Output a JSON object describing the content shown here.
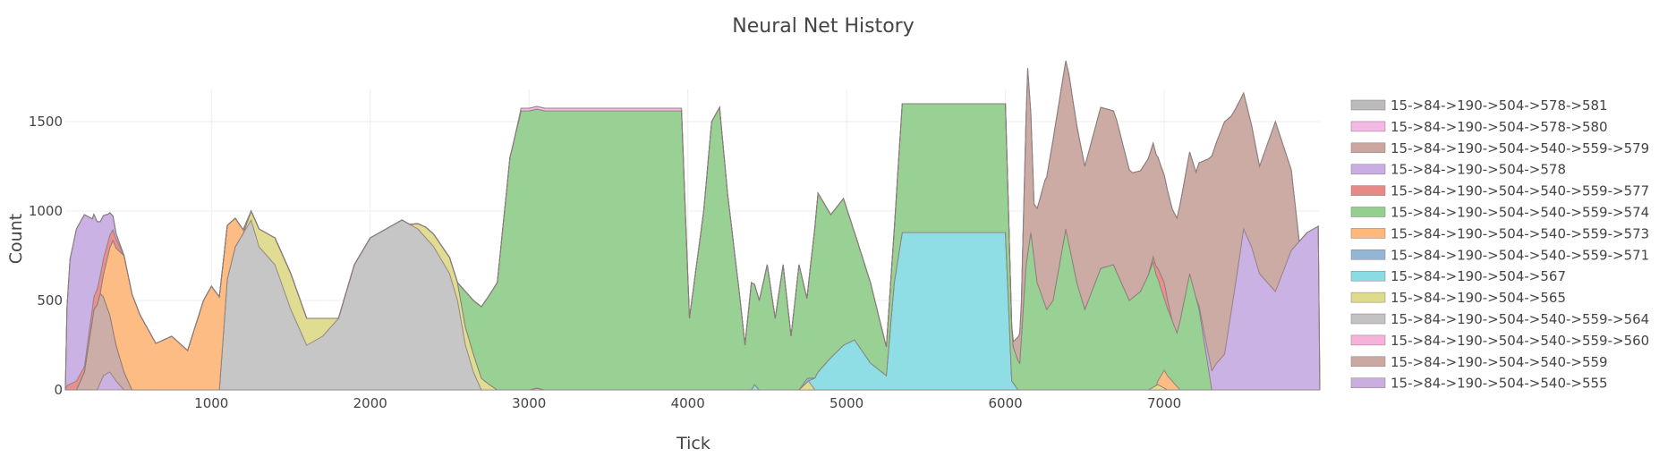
{
  "chart_data": {
    "type": "area",
    "title": "Neural Net History",
    "xlabel": "Tick",
    "ylabel": "Count",
    "xlim": [
      80,
      7980
    ],
    "ylim": [
      0,
      1680
    ],
    "x_ticks": [
      1000,
      2000,
      3000,
      4000,
      5000,
      6000,
      7000
    ],
    "x_tick_labels": [
      "1000",
      "2000",
      "3000",
      "4000",
      "5000",
      "6000",
      "7000"
    ],
    "y_ticks": [
      0,
      500,
      1000,
      1500
    ],
    "y_tick_labels": [
      "0",
      "500",
      "1000",
      "1500"
    ],
    "grid": true,
    "stacked": true,
    "legend_position": "right",
    "series": [
      {
        "name": "15->84->190->504->578->581",
        "color": "#bbbbbb",
        "points": [
          [
            3960,
            0
          ],
          [
            3990,
            18
          ],
          [
            4020,
            0
          ]
        ]
      },
      {
        "name": "15->84->190->504->578->580",
        "color": "#f4b8e4",
        "points": [
          [
            2900,
            0
          ],
          [
            2950,
            15
          ],
          [
            3960,
            15
          ],
          [
            4010,
            0
          ]
        ]
      },
      {
        "name": "15->84->190->504->540->559->579",
        "color": "#c9a7a0",
        "points": [
          [
            6040,
            0
          ],
          [
            6100,
            200
          ],
          [
            6140,
            1040
          ],
          [
            6180,
            300
          ],
          [
            6250,
            700
          ],
          [
            6300,
            900
          ],
          [
            6400,
            950
          ],
          [
            6500,
            800
          ],
          [
            6600,
            900
          ],
          [
            6700,
            850
          ],
          [
            6800,
            700
          ],
          [
            6900,
            650
          ],
          [
            7000,
            600
          ],
          [
            7100,
            650
          ],
          [
            7200,
            700
          ],
          [
            7300,
            1200
          ],
          [
            7380,
            1300
          ],
          [
            7420,
            1100
          ],
          [
            7500,
            760
          ],
          [
            7600,
            600
          ],
          [
            7700,
            950
          ],
          [
            7800,
            450
          ],
          [
            7850,
            0
          ]
        ]
      },
      {
        "name": "15->84->190->504->578",
        "color": "#c8aee3",
        "points": [
          [
            80,
            300
          ],
          [
            110,
            700
          ],
          [
            150,
            850
          ],
          [
            200,
            850
          ],
          [
            250,
            500
          ],
          [
            300,
            300
          ],
          [
            350,
            150
          ],
          [
            400,
            30
          ],
          [
            450,
            0
          ],
          [
            7200,
            0
          ],
          [
            7280,
            80
          ],
          [
            7330,
            150
          ],
          [
            7380,
            200
          ],
          [
            7450,
            600
          ],
          [
            7500,
            900
          ],
          [
            7550,
            800
          ],
          [
            7600,
            650
          ],
          [
            7700,
            550
          ],
          [
            7800,
            780
          ],
          [
            7900,
            880
          ],
          [
            7980,
            920
          ]
        ]
      },
      {
        "name": "15->84->190->504->540->559->577",
        "color": "#e68a88",
        "points": [
          [
            80,
            20
          ],
          [
            150,
            50
          ],
          [
            200,
            30
          ],
          [
            300,
            100
          ],
          [
            400,
            50
          ],
          [
            450,
            0
          ],
          [
            6900,
            0
          ],
          [
            6960,
            60
          ],
          [
            7000,
            90
          ],
          [
            7050,
            0
          ]
        ]
      },
      {
        "name": "15->84->190->504->540->559->574",
        "color": "#93cf8f",
        "points": [
          [
            2550,
            0
          ],
          [
            2600,
            200
          ],
          [
            2700,
            400
          ],
          [
            2800,
            600
          ],
          [
            2880,
            1300
          ],
          [
            2950,
            1560
          ],
          [
            3960,
            1560
          ],
          [
            4010,
            400
          ],
          [
            4100,
            1000
          ],
          [
            4150,
            1500
          ],
          [
            4200,
            1580
          ],
          [
            4250,
            1100
          ],
          [
            4330,
            500
          ],
          [
            4360,
            250
          ],
          [
            4400,
            600
          ],
          [
            4450,
            500
          ],
          [
            4500,
            700
          ],
          [
            4550,
            400
          ],
          [
            4600,
            700
          ],
          [
            4650,
            300
          ],
          [
            4700,
            700
          ],
          [
            4750,
            450
          ],
          [
            4820,
            1000
          ],
          [
            4900,
            800
          ],
          [
            4980,
            820
          ],
          [
            5050,
            600
          ],
          [
            5150,
            450
          ],
          [
            5250,
            160
          ],
          [
            5300,
            300
          ],
          [
            5350,
            720
          ],
          [
            6000,
            720
          ],
          [
            6050,
            200
          ],
          [
            6090,
            150
          ],
          [
            6130,
            700
          ],
          [
            6160,
            880
          ],
          [
            6200,
            600
          ],
          [
            6260,
            450
          ],
          [
            6300,
            500
          ],
          [
            6380,
            900
          ],
          [
            6450,
            600
          ],
          [
            6500,
            450
          ],
          [
            6600,
            680
          ],
          [
            6680,
            700
          ],
          [
            6780,
            500
          ],
          [
            6850,
            550
          ],
          [
            6930,
            700
          ],
          [
            7000,
            400
          ],
          [
            7080,
            300
          ],
          [
            7160,
            650
          ],
          [
            7220,
            450
          ],
          [
            7300,
            0
          ]
        ]
      },
      {
        "name": "15->84->190->504->540->559->573",
        "color": "#fdb87c",
        "points": [
          [
            300,
            0
          ],
          [
            380,
            500
          ],
          [
            450,
            650
          ],
          [
            550,
            420
          ],
          [
            650,
            260
          ],
          [
            750,
            300
          ],
          [
            850,
            220
          ],
          [
            950,
            500
          ],
          [
            1000,
            580
          ],
          [
            1050,
            520
          ],
          [
            1100,
            300
          ],
          [
            1200,
            20
          ],
          [
            1250,
            0
          ],
          [
            6950,
            0
          ],
          [
            7000,
            100
          ],
          [
            7050,
            50
          ],
          [
            7100,
            0
          ]
        ]
      },
      {
        "name": "15->84->190->504->540->559->571",
        "color": "#93b6d6",
        "points": [
          [
            4700,
            0
          ],
          [
            4750,
            20
          ],
          [
            4800,
            0
          ]
        ]
      },
      {
        "name": "15->84->190->504->567",
        "color": "#8adce4",
        "points": [
          [
            4400,
            0
          ],
          [
            4420,
            30
          ],
          [
            4450,
            0
          ],
          [
            4760,
            0
          ],
          [
            4820,
            100
          ],
          [
            4900,
            180
          ],
          [
            4980,
            250
          ],
          [
            5050,
            280
          ],
          [
            5150,
            150
          ],
          [
            5250,
            80
          ],
          [
            5300,
            600
          ],
          [
            5350,
            880
          ],
          [
            6000,
            880
          ],
          [
            6040,
            50
          ],
          [
            6080,
            0
          ]
        ]
      },
      {
        "name": "15->84->190->504->565",
        "color": "#dedb8d",
        "points": [
          [
            1200,
            0
          ],
          [
            1300,
            100
          ],
          [
            1400,
            150
          ],
          [
            1500,
            200
          ],
          [
            1600,
            150
          ],
          [
            1700,
            100
          ],
          [
            1800,
            0
          ],
          [
            2250,
            0
          ],
          [
            2350,
            60
          ],
          [
            2450,
            80
          ],
          [
            2550,
            100
          ],
          [
            2650,
            100
          ],
          [
            2750,
            30
          ],
          [
            2800,
            0
          ],
          [
            4700,
            0
          ],
          [
            4760,
            50
          ],
          [
            4800,
            0
          ],
          [
            6900,
            0
          ],
          [
            6960,
            30
          ],
          [
            7020,
            0
          ]
        ]
      },
      {
        "name": "15->84->190->504->540->559->564",
        "color": "#c3c3c3",
        "points": [
          [
            1050,
            0
          ],
          [
            1100,
            620
          ],
          [
            1150,
            800
          ],
          [
            1250,
            950
          ],
          [
            1300,
            800
          ],
          [
            1400,
            700
          ],
          [
            1500,
            450
          ],
          [
            1600,
            250
          ],
          [
            1700,
            300
          ],
          [
            1800,
            400
          ],
          [
            1900,
            700
          ],
          [
            2000,
            850
          ],
          [
            2100,
            900
          ],
          [
            2200,
            950
          ],
          [
            2300,
            900
          ],
          [
            2400,
            800
          ],
          [
            2500,
            650
          ],
          [
            2550,
            500
          ],
          [
            2600,
            250
          ],
          [
            2650,
            100
          ],
          [
            2700,
            0
          ]
        ]
      },
      {
        "name": "15->84->190->504->540->559->560",
        "color": "#f7b2dc",
        "points": [
          [
            3000,
            0
          ],
          [
            3050,
            10
          ],
          [
            3100,
            0
          ]
        ]
      },
      {
        "name": "15->84->190->504->540->559",
        "color": "#c9a9a2",
        "points": [
          [
            150,
            0
          ],
          [
            200,
            100
          ],
          [
            260,
            450
          ],
          [
            300,
            500
          ],
          [
            350,
            350
          ],
          [
            400,
            200
          ],
          [
            450,
            100
          ],
          [
            500,
            0
          ]
        ]
      },
      {
        "name": "15->84->190->504->540->555",
        "color": "#c9aedf",
        "points": [
          [
            280,
            0
          ],
          [
            320,
            80
          ],
          [
            360,
            100
          ],
          [
            400,
            50
          ],
          [
            450,
            0
          ]
        ]
      }
    ]
  }
}
